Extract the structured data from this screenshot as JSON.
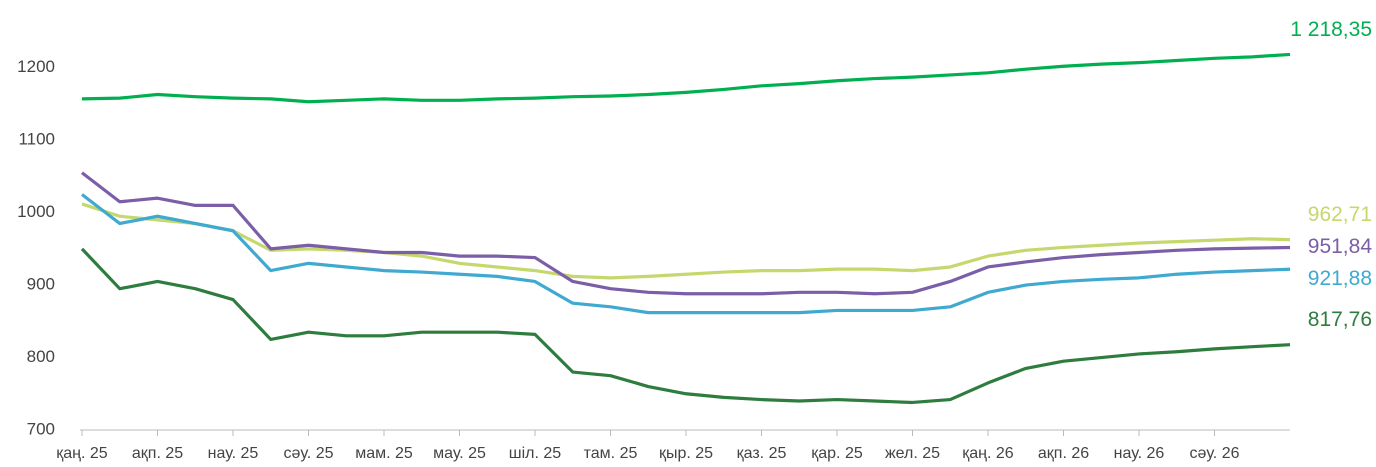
{
  "chart_data": {
    "type": "line",
    "categories": [
      "қаң. 25",
      null,
      "ақп. 25",
      null,
      "нау. 25",
      null,
      "сәу. 25",
      null,
      "мам. 25",
      null,
      "мау. 25",
      null,
      "шіл. 25",
      null,
      "там. 25",
      null,
      "қыр. 25",
      null,
      "қаз. 25",
      null,
      "қар. 25",
      null,
      "жел. 25",
      null,
      "қаң. 26",
      null,
      "ақп. 26",
      null,
      "нау. 26",
      null,
      "сәу. 26",
      null,
      null
    ],
    "series": [
      {
        "color": "#00b050",
        "values": [
          1157,
          1158,
          1163,
          1160,
          1158,
          1157,
          1153,
          1155,
          1157,
          1155,
          1155,
          1157,
          1158,
          1160,
          1161,
          1163,
          1166,
          1170,
          1175,
          1178,
          1182,
          1185,
          1187,
          1190,
          1193,
          1198,
          1202,
          1205,
          1207,
          1210,
          1213,
          1215,
          1218.35
        ],
        "value_labels": [
          null,
          null,
          null,
          null,
          null,
          null,
          null,
          null,
          null,
          null,
          null,
          null,
          null,
          null,
          null,
          null,
          null,
          null,
          null,
          null,
          null,
          null,
          null,
          null,
          null,
          null,
          null,
          null,
          null,
          null,
          null,
          null,
          "1 218,35"
        ]
      },
      {
        "color": "#c5d86d",
        "values": [
          1012,
          995,
          990,
          985,
          975,
          948,
          950,
          948,
          945,
          940,
          930,
          925,
          920,
          912,
          910,
          912,
          915,
          918,
          920,
          920,
          922,
          922,
          920,
          925,
          940,
          948,
          952,
          955,
          958,
          960,
          962,
          964,
          962.71
        ],
        "value_labels": [
          null,
          null,
          null,
          null,
          null,
          null,
          null,
          null,
          null,
          null,
          null,
          null,
          null,
          null,
          null,
          null,
          null,
          null,
          null,
          null,
          null,
          null,
          null,
          null,
          null,
          null,
          null,
          null,
          null,
          null,
          null,
          null,
          "962,71"
        ]
      },
      {
        "color": "#7b5ea7",
        "values": [
          1055,
          1015,
          1020,
          1010,
          1010,
          950,
          955,
          950,
          945,
          945,
          940,
          940,
          938,
          905,
          895,
          890,
          888,
          888,
          888,
          890,
          890,
          888,
          890,
          905,
          925,
          932,
          938,
          942,
          945,
          948,
          950,
          951,
          951.84
        ],
        "value_labels": [
          null,
          null,
          null,
          null,
          null,
          null,
          null,
          null,
          null,
          null,
          null,
          null,
          null,
          null,
          null,
          null,
          null,
          null,
          null,
          null,
          null,
          null,
          null,
          null,
          null,
          null,
          null,
          null,
          null,
          null,
          null,
          null,
          "951,84"
        ]
      },
      {
        "color": "#3fa9d0",
        "values": [
          1025,
          985,
          995,
          985,
          975,
          920,
          930,
          925,
          920,
          918,
          915,
          912,
          905,
          875,
          870,
          862,
          862,
          862,
          862,
          862,
          865,
          865,
          865,
          870,
          890,
          900,
          905,
          908,
          910,
          915,
          918,
          920,
          921.88
        ],
        "value_labels": [
          null,
          null,
          null,
          null,
          null,
          null,
          null,
          null,
          null,
          null,
          null,
          null,
          null,
          null,
          null,
          null,
          null,
          null,
          null,
          null,
          null,
          null,
          null,
          null,
          null,
          null,
          null,
          null,
          null,
          null,
          null,
          null,
          "921,88"
        ]
      },
      {
        "color": "#2e7d3e",
        "values": [
          950,
          895,
          905,
          895,
          880,
          825,
          835,
          830,
          830,
          835,
          835,
          835,
          832,
          780,
          775,
          760,
          750,
          745,
          742,
          740,
          742,
          740,
          738,
          742,
          765,
          785,
          795,
          800,
          805,
          808,
          812,
          815,
          817.76
        ],
        "value_labels": [
          null,
          null,
          null,
          null,
          null,
          null,
          null,
          null,
          null,
          null,
          null,
          null,
          null,
          null,
          null,
          null,
          null,
          null,
          null,
          null,
          null,
          null,
          null,
          null,
          null,
          null,
          null,
          null,
          null,
          null,
          null,
          null,
          "817,76"
        ]
      }
    ],
    "ylim": [
      700,
      1270
    ],
    "yticks": [
      700,
      800,
      900,
      1000,
      1100,
      1200
    ]
  }
}
